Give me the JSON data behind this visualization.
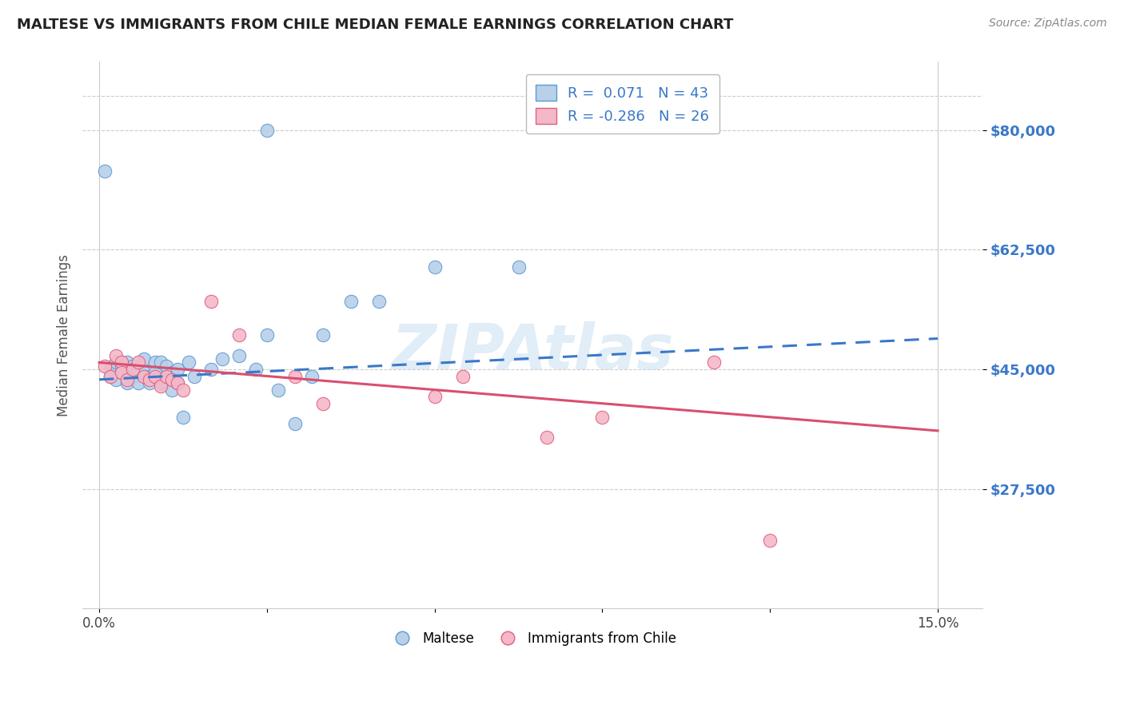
{
  "title": "MALTESE VS IMMIGRANTS FROM CHILE MEDIAN FEMALE EARNINGS CORRELATION CHART",
  "source_text": "Source: ZipAtlas.com",
  "ylabel": "Median Female Earnings",
  "xlim": [
    -0.003,
    0.158
  ],
  "ylim": [
    10000,
    90000
  ],
  "yticks": [
    27500,
    45000,
    62500,
    80000
  ],
  "ytick_labels": [
    "$27,500",
    "$45,000",
    "$62,500",
    "$80,000"
  ],
  "blue_color": "#b8d0e8",
  "blue_edge": "#5b9bd5",
  "pink_color": "#f4b8c8",
  "pink_edge": "#e06080",
  "trend_blue": "#3a78c9",
  "trend_pink": "#d94f70",
  "R_blue": 0.071,
  "N_blue": 43,
  "R_pink": -0.286,
  "N_pink": 26,
  "watermark": "ZIPAtlas",
  "blue_x": [
    0.001,
    0.002,
    0.002,
    0.003,
    0.003,
    0.004,
    0.004,
    0.005,
    0.005,
    0.006,
    0.006,
    0.007,
    0.007,
    0.008,
    0.008,
    0.009,
    0.009,
    0.01,
    0.01,
    0.011,
    0.011,
    0.012,
    0.012,
    0.013,
    0.013,
    0.014,
    0.014,
    0.015,
    0.016,
    0.017,
    0.02,
    0.022,
    0.025,
    0.028,
    0.03,
    0.032,
    0.035,
    0.038,
    0.04,
    0.045,
    0.05,
    0.06,
    0.075
  ],
  "blue_y": [
    74000,
    45000,
    44000,
    46000,
    43500,
    45500,
    44500,
    46000,
    43000,
    45500,
    44000,
    45000,
    43000,
    46500,
    44500,
    44000,
    43000,
    46000,
    44500,
    43000,
    46000,
    44000,
    45500,
    44500,
    42000,
    45000,
    43000,
    38000,
    46000,
    44000,
    45000,
    46500,
    47000,
    45000,
    50000,
    42000,
    37000,
    44000,
    50000,
    55000,
    55000,
    60000,
    60000
  ],
  "blue_outlier_x": [
    0.03
  ],
  "blue_outlier_y": [
    80000
  ],
  "pink_x": [
    0.001,
    0.002,
    0.003,
    0.004,
    0.004,
    0.005,
    0.006,
    0.007,
    0.008,
    0.009,
    0.01,
    0.011,
    0.012,
    0.013,
    0.014,
    0.015,
    0.02,
    0.025,
    0.035,
    0.04,
    0.06,
    0.065,
    0.08,
    0.09,
    0.11,
    0.12
  ],
  "pink_y": [
    45500,
    44000,
    47000,
    46000,
    44500,
    43500,
    45000,
    46000,
    44000,
    43500,
    44000,
    42500,
    44000,
    43500,
    43000,
    42000,
    55000,
    50000,
    44000,
    40000,
    41000,
    44000,
    35000,
    38000,
    46000,
    20000
  ],
  "trend_blue_x0": 0.0,
  "trend_blue_y0": 43500,
  "trend_blue_x1": 0.15,
  "trend_blue_y1": 49500,
  "trend_pink_x0": 0.0,
  "trend_pink_y0": 46000,
  "trend_pink_x1": 0.15,
  "trend_pink_y1": 36000
}
